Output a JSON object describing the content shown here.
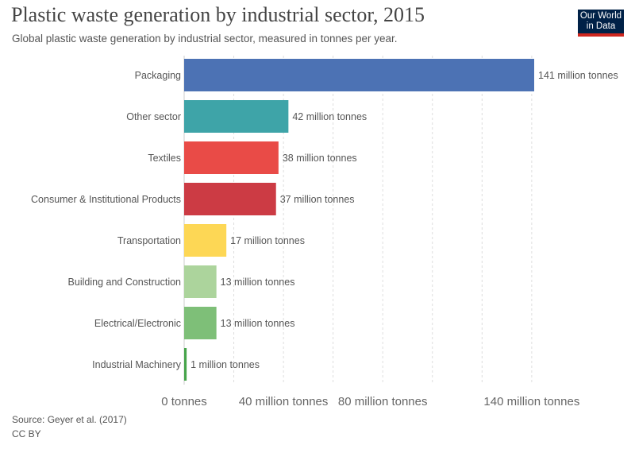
{
  "header": {
    "title": "Plastic waste generation by industrial sector, 2015",
    "subtitle": "Global plastic waste generation by industrial sector, measured in tonnes per year."
  },
  "logo": {
    "line1": "Our World",
    "line2": "in Data"
  },
  "footer": {
    "source": "Source: Geyer et al. (2017)",
    "license": "CC BY"
  },
  "chart_data": {
    "type": "bar",
    "orientation": "horizontal",
    "title": "Plastic waste generation by industrial sector, 2015",
    "unit": "million tonnes",
    "categories": [
      "Packaging",
      "Other sector",
      "Textiles",
      "Consumer & Institutional Products",
      "Transportation",
      "Building and Construction",
      "Electrical/Electronic",
      "Industrial Machinery"
    ],
    "values": [
      141,
      42,
      38,
      37,
      17,
      13,
      13,
      1
    ],
    "value_labels": [
      "141 million tonnes",
      "42 million tonnes",
      "38 million tonnes",
      "37 million tonnes",
      "17 million tonnes",
      "13 million tonnes",
      "13 million tonnes",
      "1 million tonnes"
    ],
    "colors": [
      "#4c72b4",
      "#3ea4a8",
      "#e94b47",
      "#cc3b44",
      "#fdd755",
      "#acd49c",
      "#7ebf78",
      "#47a44b"
    ],
    "x_ticks": [
      0,
      40,
      80,
      140
    ],
    "x_tick_labels": [
      "0 tonnes",
      "40 million tonnes",
      "80 million tonnes",
      "140 million tonnes"
    ],
    "gridlines_at": [
      0,
      20,
      40,
      60,
      80,
      100,
      120,
      140
    ],
    "xlim": [
      0,
      141
    ]
  }
}
